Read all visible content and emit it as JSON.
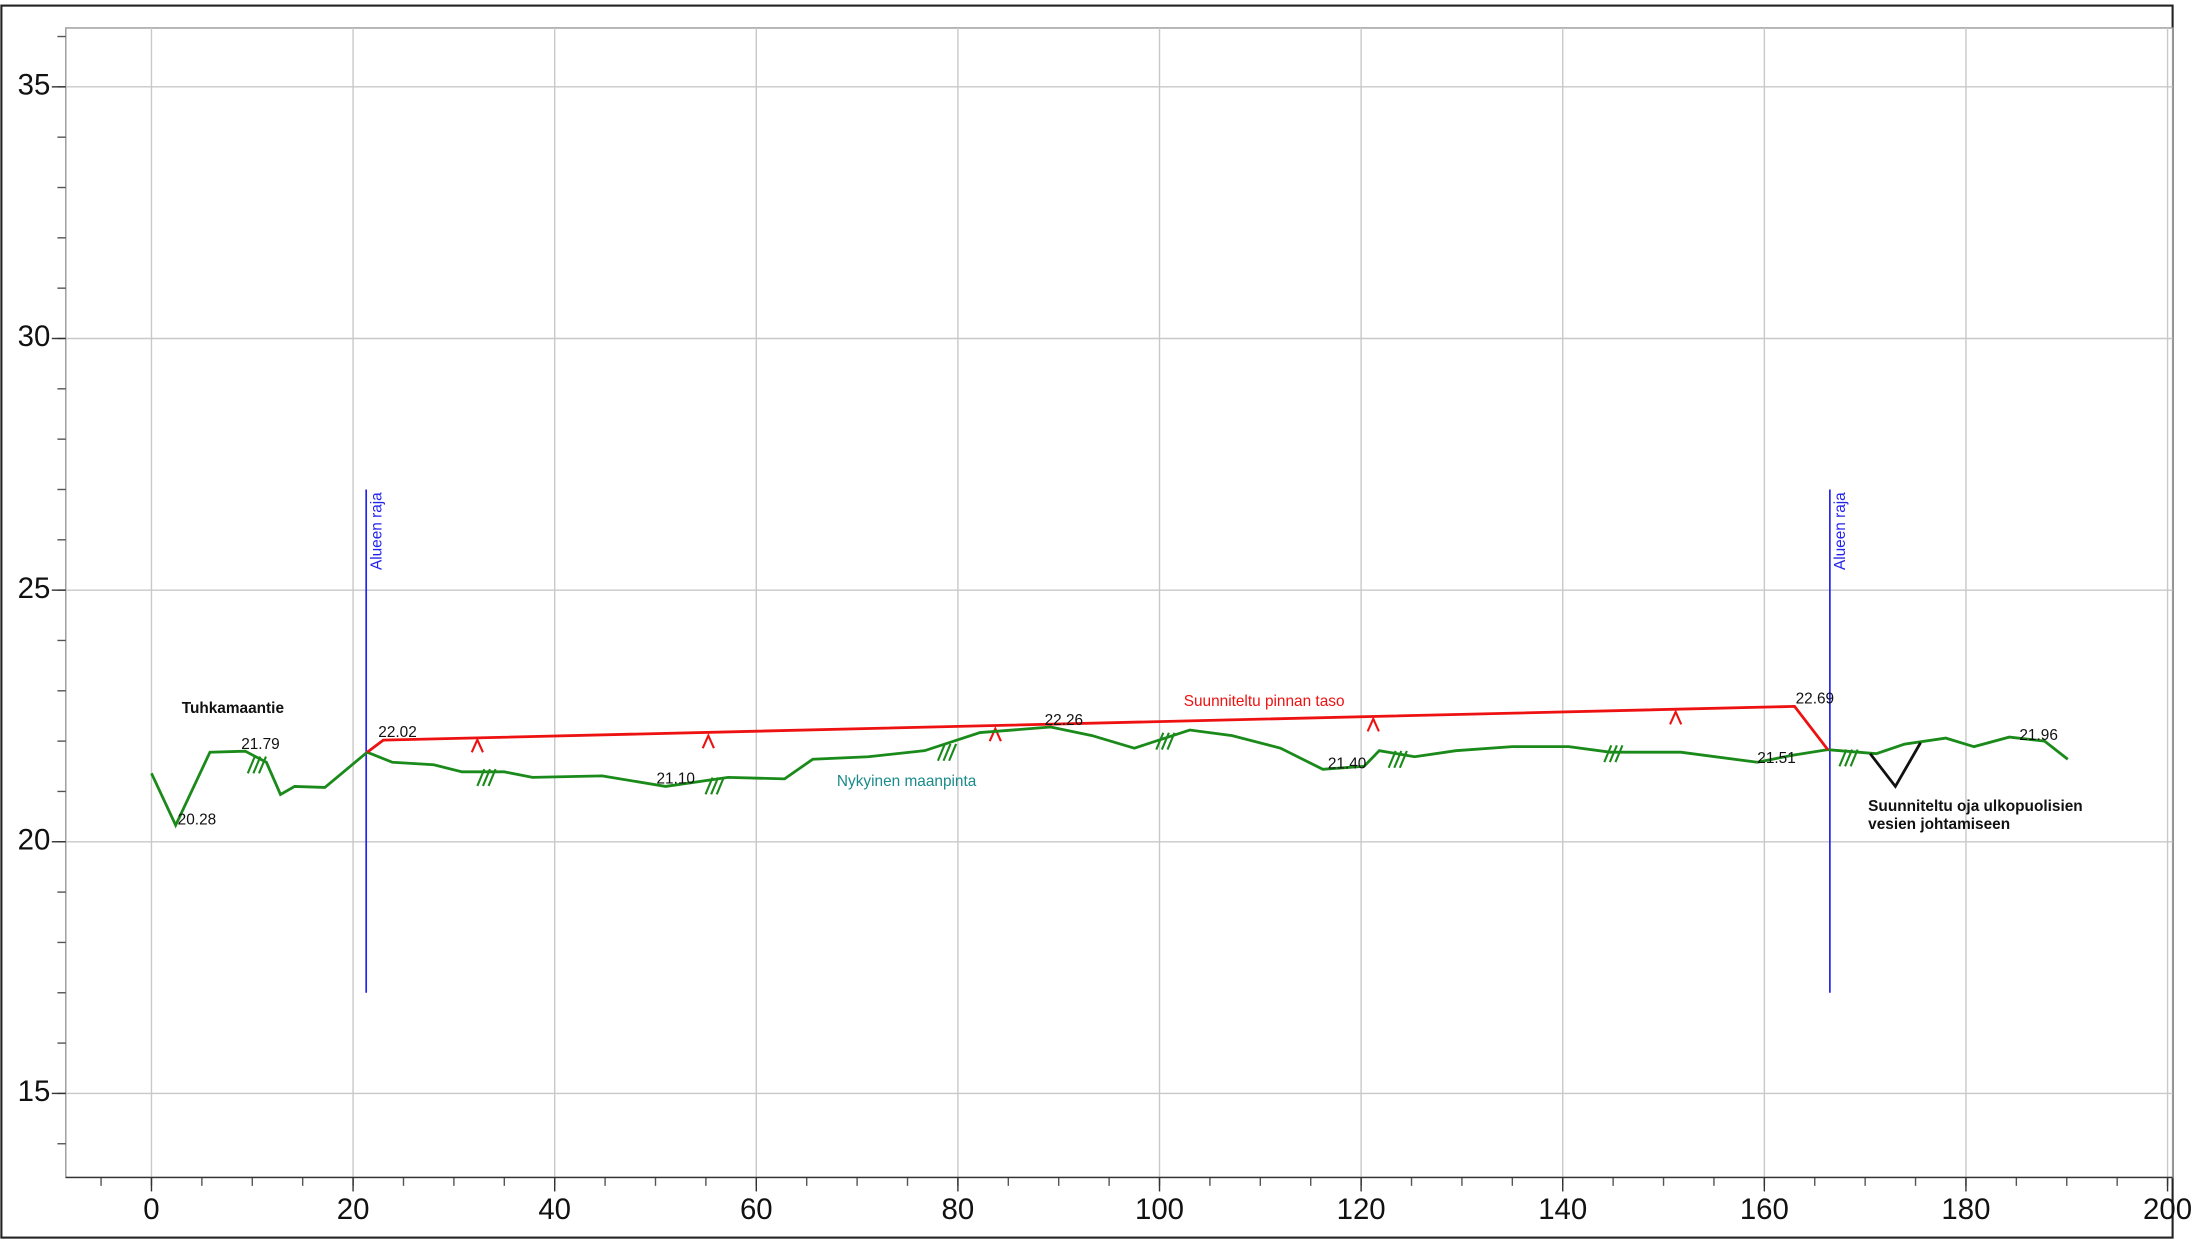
{
  "chart_data": {
    "type": "line",
    "xlim": [
      -8.5,
      200.5
    ],
    "xticks": [
      0,
      20,
      40,
      60,
      80,
      100,
      120,
      140,
      160,
      180,
      200
    ],
    "xminor_step": 5,
    "ylim": [
      13.33,
      36.17
    ],
    "yticks": [
      15,
      20,
      25,
      30,
      35
    ],
    "yminor_step": 1,
    "grid": true,
    "series": [
      {
        "color": "#1a8a1a",
        "x": [
          0,
          2.4,
          5.8,
          9.3,
          11.4,
          12.8,
          14.2,
          17.2,
          21.4,
          23.9,
          28,
          30.8,
          35,
          37.8,
          44.7,
          51,
          57.2,
          62.8,
          65.6,
          71.1,
          76.7,
          82.2,
          89.2,
          93.3,
          97.5,
          103,
          107.2,
          112,
          116.2,
          120.3,
          121.8,
          125.3,
          129.4,
          135,
          140.6,
          144.7,
          151.7,
          159.3,
          162.8,
          166.3,
          171.1,
          173.9,
          178,
          180.8,
          184.3,
          187.8,
          190.1
        ],
        "values": [
          21.36,
          20.33,
          21.78,
          21.8,
          21.58,
          20.94,
          21.1,
          21.08,
          21.78,
          21.58,
          21.53,
          21.39,
          21.39,
          21.28,
          21.31,
          21.1,
          21.28,
          21.25,
          21.64,
          21.69,
          21.81,
          22.17,
          22.28,
          22.11,
          21.86,
          22.22,
          22.11,
          21.86,
          21.44,
          21.5,
          21.81,
          21.69,
          21.81,
          21.89,
          21.89,
          21.78,
          21.78,
          21.58,
          21.72,
          21.83,
          21.75,
          21.94,
          22.06,
          21.89,
          22.08,
          22.0,
          21.64
        ]
      },
      {
        "color": "#ee1111",
        "x": [
          21.4,
          23,
          163,
          166.3
        ],
        "values": [
          21.78,
          22.02,
          22.69,
          21.83
        ]
      },
      {
        "color": "#111111",
        "x": [
          170.5,
          173,
          175.5
        ],
        "values": [
          21.75,
          21.1,
          21.97
        ]
      }
    ],
    "markers": {
      "x": [
        2.6,
        8.9,
        22.5,
        50.1,
        88.6,
        116.7,
        159.3,
        185.3,
        163.1
      ],
      "values": [
        20.28,
        21.79,
        22.02,
        21.1,
        22.26,
        21.4,
        21.51,
        21.96,
        22.69
      ],
      "value_labels": [
        "20.28",
        "21.79",
        "22.02",
        "21.10",
        "22.26",
        "21.40",
        "21.51",
        "21.96",
        "22.69"
      ]
    },
    "boundaries": {
      "label": "Alueen raja",
      "color": "#2222ee",
      "x": [
        21.3,
        166.5
      ],
      "y_from": 17,
      "y_to": 27
    },
    "annotations": [
      {
        "text": "Tuhkamaantie",
        "x": 3.0,
        "y": 22.64,
        "color": "#111111"
      },
      {
        "text": "Suunniteltu pinnan taso",
        "x": 102.4,
        "y": 22.78,
        "color": "#ee1111"
      },
      {
        "text": "Nykyinen maanpinta",
        "x": 68,
        "y": 21.19,
        "color": "#1a8a8a"
      },
      {
        "text": "Suunniteltu oja ulkopuolisien",
        "x": 170.3,
        "y": 20.69,
        "color": "#111111"
      },
      {
        "text": "vesien johtamiseen",
        "x": 170.3,
        "y": 20.33,
        "color": "#111111"
      }
    ]
  }
}
